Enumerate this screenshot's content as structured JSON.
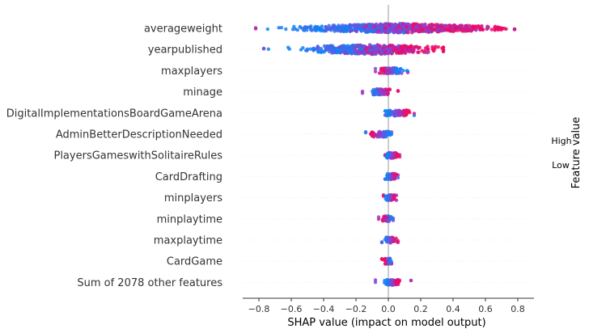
{
  "chart_data": {
    "type": "scatter",
    "subtype": "shap-beeswarm",
    "title": "",
    "xlabel": "SHAP value (impact on model output)",
    "xlim": [
      -0.9,
      0.9
    ],
    "xticks": [
      -0.8,
      -0.6,
      -0.4,
      -0.2,
      0.0,
      0.2,
      0.4,
      0.6,
      0.8
    ],
    "xtick_labels": [
      "−0.8",
      "−0.6",
      "−0.4",
      "−0.2",
      "0.0",
      "0.2",
      "0.4",
      "0.6",
      "0.8"
    ],
    "zero_line": 0.0,
    "features": [
      {
        "name": "averageweight",
        "min": -0.82,
        "max": 0.78,
        "low_center": -0.35,
        "high_center": 0.45,
        "spread": 0.55
      },
      {
        "name": "yearpublished",
        "min": -0.77,
        "max": 0.34,
        "low_center": -0.35,
        "high_center": 0.15,
        "spread": 0.35
      },
      {
        "name": "maxplayers",
        "min": -0.08,
        "max": 0.12,
        "low_center": 0.06,
        "high_center": -0.03,
        "spread": 0.05
      },
      {
        "name": "minage",
        "min": -0.16,
        "max": 0.06,
        "low_center": -0.08,
        "high_center": -0.01,
        "spread": 0.04
      },
      {
        "name": "DigitalImplementationsBoardGameArena",
        "min": -0.02,
        "max": 0.16,
        "low_center": -0.01,
        "high_center": 0.12,
        "spread": 0.02
      },
      {
        "name": "AdminBetterDescriptionNeeded",
        "min": -0.14,
        "max": 0.02,
        "low_center": 0.01,
        "high_center": -0.11,
        "spread": 0.02
      },
      {
        "name": "PlayersGameswithSolitaireRules",
        "min": -0.02,
        "max": 0.07,
        "low_center": -0.01,
        "high_center": 0.05,
        "spread": 0.015
      },
      {
        "name": "CardDrafting",
        "min": -0.02,
        "max": 0.06,
        "low_center": -0.005,
        "high_center": 0.04,
        "spread": 0.015
      },
      {
        "name": "minplayers",
        "min": -0.03,
        "max": 0.05,
        "low_center": -0.01,
        "high_center": 0.03,
        "spread": 0.02
      },
      {
        "name": "minplaytime",
        "min": -0.06,
        "max": 0.03,
        "low_center": 0.01,
        "high_center": -0.03,
        "spread": 0.02
      },
      {
        "name": "maxplaytime",
        "min": -0.04,
        "max": 0.06,
        "low_center": -0.01,
        "high_center": 0.04,
        "spread": 0.02
      },
      {
        "name": "CardGame",
        "min": -0.04,
        "max": 0.02,
        "low_center": 0.01,
        "high_center": -0.02,
        "spread": 0.01
      },
      {
        "name": "Sum of 2078 other features",
        "min": -0.08,
        "max": 0.14,
        "low_center": -0.01,
        "high_center": 0.06,
        "spread": 0.04
      }
    ],
    "colorbar": {
      "label": "Feature value",
      "high_label": "High",
      "low_label": "Low",
      "low_color": "#008bfb",
      "mid_color": "#8a40d6",
      "high_color": "#ff0052"
    }
  }
}
